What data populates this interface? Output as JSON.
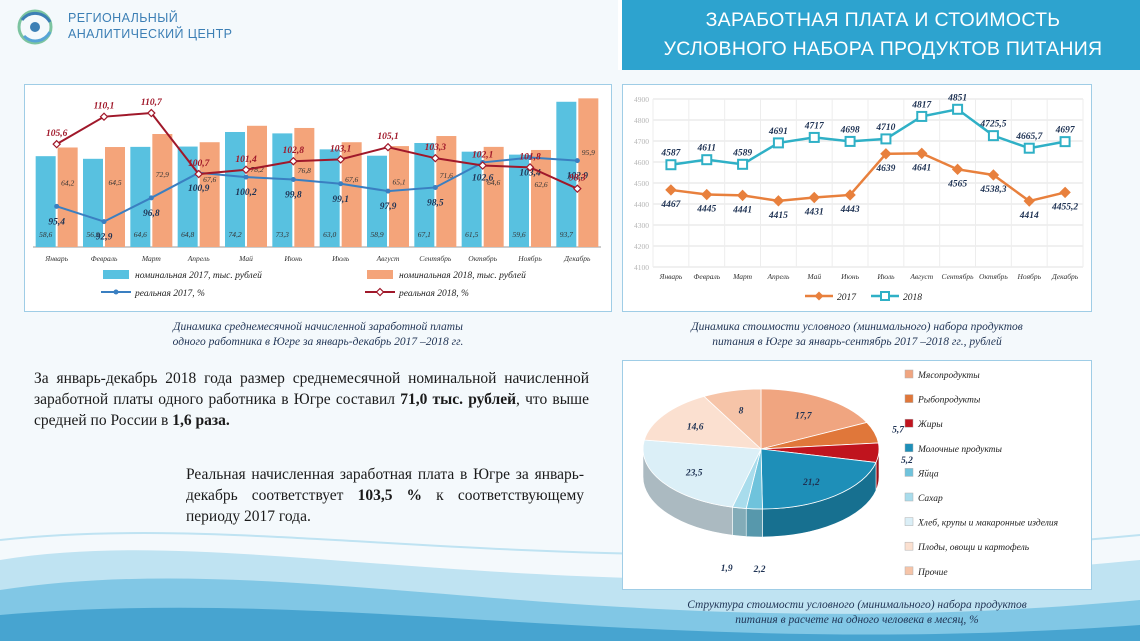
{
  "branding": {
    "logo_line1": "РЕГИОНАЛЬНЫЙ",
    "logo_line2": "АНАЛИТИЧЕСКИЙ ЦЕНТР"
  },
  "header": {
    "title_line1": "ЗАРАБОТНАЯ ПЛАТА И СТОИМОСТЬ",
    "title_line2": "УСЛОВНОГО НАБОРА ПРОДУКТОВ ПИТАНИЯ"
  },
  "captions": {
    "salary_line1": "Динамика среднемесячной начисленной заработной платы",
    "salary_line2": "одного работника в Югре за январь-декабрь 2017 –2018 гг.",
    "basket_line1": "Динамика стоимости условного (минимального) набора продуктов",
    "basket_line2": "питания в Югре за январь-сентябрь 2017 –2018 гг., рублей",
    "pie_line1": "Структура стоимости условного (минимального) набора продуктов",
    "pie_line2": "питания в расчете на одного человека в месяц, %"
  },
  "text": {
    "p1_a": "За январь-декабрь 2018 года размер среднемесячной номинальной начисленной заработной платы одного работника в Югре составил ",
    "p1_b": "71,0 тыс. рублей",
    "p1_c": ", что выше средней по России в ",
    "p1_d": "1,6 раза.",
    "p2_a": "Реальная начисленная заработная плата в Югре за январь-декабрь соответствует ",
    "p2_b": "103,5 %",
    "p2_c": " к соответствующему периоду 2017 года."
  },
  "colors": {
    "nom2017": "#58c1e0",
    "nom2018": "#f4a47a",
    "real2017": "#3a7fc1",
    "real2018": "#a0182a",
    "basket2017": "#e8803d",
    "basket2018": "#2fb0c6",
    "accent": "#2da3cf"
  },
  "chart_data": [
    {
      "type": "bar",
      "categories": [
        "Январь",
        "Февраль",
        "Март",
        "Апрель",
        "Май",
        "Июнь",
        "Июль",
        "Август",
        "Сентябрь",
        "Октябрь",
        "Ноябрь",
        "Декабрь"
      ],
      "series": [
        {
          "name": "номинальная 2017, тыс. рублей",
          "kind": "bar",
          "values": [
            58.6,
            56.9,
            64.6,
            64.8,
            74.2,
            73.3,
            63.0,
            58.9,
            67.1,
            61.5,
            59.6,
            93.7
          ],
          "labels": [
            "58,6",
            "56,9",
            "64,6",
            "64,8",
            "74,2",
            "73,3",
            "63,0",
            "58,9",
            "67,1",
            "61,5",
            "59,6",
            "93,7"
          ]
        },
        {
          "name": "номинальная 2018, тыс. рублей",
          "kind": "bar",
          "values": [
            64.2,
            64.5,
            72.9,
            67.6,
            78.2,
            76.8,
            67.6,
            65.1,
            71.6,
            64.6,
            62.6,
            95.9
          ],
          "labels": [
            "64,2",
            "64,5",
            "72,9",
            "67,6",
            "78,2",
            "76,8",
            "67,6",
            "65,1",
            "71,6",
            "64,6",
            "62,6",
            "95,9"
          ]
        },
        {
          "name": "реальная  2017, %",
          "kind": "line",
          "values": [
            95.4,
            92.9,
            96.8,
            100.9,
            100.2,
            99.8,
            99.1,
            97.9,
            98.5,
            102.6,
            103.4,
            102.9
          ],
          "labels": [
            "95,4",
            "92,9",
            "96,8",
            "100,9",
            "100,2",
            "99,8",
            "99,1",
            "97,9",
            "98,5",
            "102,6",
            "103,4",
            "102,9"
          ]
        },
        {
          "name": "реальная 2018, %",
          "kind": "line",
          "values": [
            105.6,
            110.1,
            110.7,
            100.7,
            101.4,
            102.8,
            103.1,
            105.1,
            103.3,
            102.1,
            101.8,
            98.3
          ],
          "labels": [
            "105,6",
            "110,1",
            "110,7",
            "100,7",
            "101,4",
            "102,8",
            "103,1",
            "105,1",
            "103,3",
            "102,1",
            "101,8",
            "98,3"
          ]
        }
      ],
      "legend_position": "bottom"
    },
    {
      "type": "line",
      "categories": [
        "Январь",
        "Февраль",
        "Март",
        "Апрель",
        "Май",
        "Июнь",
        "Июль",
        "Август",
        "Сентябрь",
        "Октябрь",
        "Ноябрь",
        "Декабрь"
      ],
      "y_ticks": [
        "4100",
        "4200",
        "4300",
        "4400",
        "4500",
        "4600",
        "4700",
        "4800",
        "4900"
      ],
      "ylim": [
        4100,
        4900
      ],
      "series": [
        {
          "name": "2017",
          "values": [
            4467,
            4445,
            4441,
            4415,
            4431,
            4443,
            4639,
            4641,
            4565,
            4538.3,
            4414,
            4455.2
          ],
          "labels": [
            "4467",
            "4445",
            "4441",
            "4415",
            "4431",
            "4443",
            "4639",
            "4641",
            "4565",
            "4538,3",
            "4414",
            "4455,2"
          ]
        },
        {
          "name": "2018",
          "values": [
            4587,
            4611,
            4589,
            4691,
            4717,
            4698,
            4710,
            4817,
            4851,
            4725.5,
            4665.7,
            4697
          ],
          "labels": [
            "4587",
            "4611",
            "4589",
            "4691",
            "4717",
            "4698",
            "4710",
            "4817",
            "4851",
            "4725,5",
            "4665,7",
            "4697"
          ]
        }
      ],
      "grid": true,
      "legend_position": "bottom"
    },
    {
      "type": "pie",
      "slices": [
        {
          "name": "Мясопродукты",
          "value": 17.7,
          "label": "17,7",
          "color": "#f0a580"
        },
        {
          "name": "Рыбопродукты",
          "value": 5.7,
          "label": "5,7",
          "color": "#e0773a"
        },
        {
          "name": "Жиры",
          "value": 5.2,
          "label": "5,2",
          "color": "#c0141e"
        },
        {
          "name": "Молочные продукты",
          "value": 21.2,
          "label": "21,2",
          "color": "#1e8fb8"
        },
        {
          "name": "Яйца",
          "value": 2.2,
          "label": "2,2",
          "color": "#6fc3dc"
        },
        {
          "name": "Сахар",
          "value": 1.9,
          "label": "1,9",
          "color": "#a8dcec"
        },
        {
          "name": "Хлеб, крупы и макаронные изделия",
          "value": 23.5,
          "label": "23,5",
          "color": "#dbeff7"
        },
        {
          "name": "Плоды, овощи и картофель",
          "value": 14.6,
          "label": "14,6",
          "color": "#fbe0d0"
        },
        {
          "name": "Прочие",
          "value": 8,
          "label": "8",
          "color": "#f6c4a8"
        }
      ],
      "legend_position": "right"
    }
  ]
}
